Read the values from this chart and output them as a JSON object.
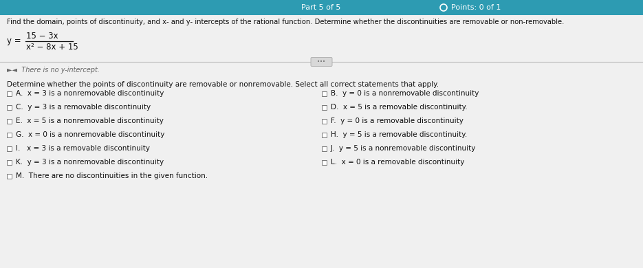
{
  "top_bar_color": "#2d9bb2",
  "top_bar_text_center": "Part 5 of 5",
  "top_bar_text_right": "Points: 0 of 1",
  "background_color": "#e8e8e8",
  "main_bg": "#f0f0f0",
  "title_text": "Find the domain, points of discontinuity, and x- and y- intercepts of the rational function. Determine whether the discontinuities are removable or non-removable.",
  "function_numerator": "15 − 3x",
  "function_denominator": "x² − 8x + 15",
  "prev_answer_label": "►◄  There is no y-intercept.",
  "instruction": "Determine whether the points of discontinuity are removable or nonremovable. Select all correct statements that apply.",
  "options_left": [
    "A.  x = 3 is a nonremovable discontinuity",
    "C.  y = 3 is a removable discontinuity",
    "E.  x = 5 is a nonremovable discontinuity",
    "G.  x = 0 is a nonremovable discontinuity",
    "I.   x = 3 is a removable discontinuity",
    "K.  y = 3 is a nonremovable discontinuity"
  ],
  "options_right": [
    "B.  y = 0 is a nonremovable discontinuity",
    "D.  x = 5 is a removable discontinuity.",
    "F.  y = 0 is a removable discontinuity",
    "H.  y = 5 is a removable discontinuity.",
    "J.  y = 5 is a nonremovable discontinuity",
    "L.  x = 0 is a removable discontinuity"
  ],
  "option_m": "M.  There are no discontinuities in the given function.",
  "text_color": "#111111",
  "gray_text": "#666666",
  "checkbox_color": "#777777",
  "divider_color": "#bbbbbb",
  "ellipsis_bg": "#d8d8d8",
  "ellipsis_border": "#aaaaaa"
}
